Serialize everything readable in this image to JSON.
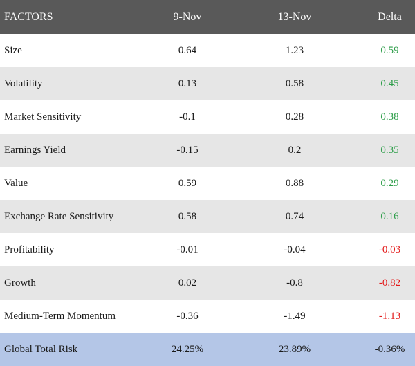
{
  "colors": {
    "header_bg": "#595959",
    "row_gray": "#e6e6e6",
    "footer_bg": "#b4c6e7",
    "positive": "#2e9e4a",
    "negative": "#e31b1b"
  },
  "table": {
    "headers": {
      "factor": "FACTORS",
      "date1": "9-Nov",
      "date2": "13-Nov",
      "delta": "Delta"
    },
    "rows": [
      {
        "factor": "Size",
        "date1": "0.64",
        "date2": "1.23",
        "delta": "0.59",
        "sign": "positive"
      },
      {
        "factor": "Volatility",
        "date1": "0.13",
        "date2": "0.58",
        "delta": "0.45",
        "sign": "positive"
      },
      {
        "factor": "Market Sensitivity",
        "date1": "-0.1",
        "date2": "0.28",
        "delta": "0.38",
        "sign": "positive"
      },
      {
        "factor": "Earnings Yield",
        "date1": "-0.15",
        "date2": "0.2",
        "delta": "0.35",
        "sign": "positive"
      },
      {
        "factor": "Value",
        "date1": "0.59",
        "date2": "0.88",
        "delta": "0.29",
        "sign": "positive"
      },
      {
        "factor": "Exchange Rate Sensitivity",
        "date1": "0.58",
        "date2": "0.74",
        "delta": "0.16",
        "sign": "positive"
      },
      {
        "factor": "Profitability",
        "date1": "-0.01",
        "date2": "-0.04",
        "delta": "-0.03",
        "sign": "negative"
      },
      {
        "factor": "Growth",
        "date1": "0.02",
        "date2": "-0.8",
        "delta": "-0.82",
        "sign": "negative"
      },
      {
        "factor": "Medium-Term Momentum",
        "date1": "-0.36",
        "date2": "-1.49",
        "delta": "-1.13",
        "sign": "negative"
      }
    ],
    "total": {
      "factor": "Global Total Risk",
      "date1": "24.25%",
      "date2": "23.89%",
      "delta": "-0.36%"
    }
  }
}
